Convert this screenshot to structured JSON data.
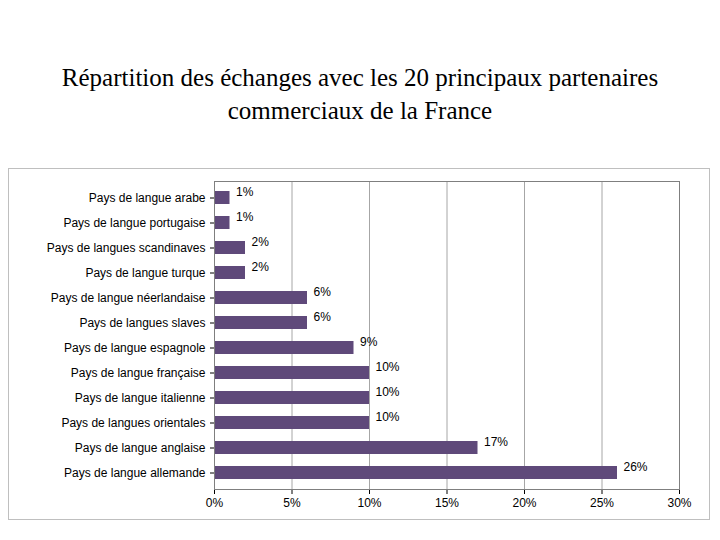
{
  "chart_data": {
    "type": "bar",
    "orientation": "horizontal",
    "title": "Répartition des échanges avec les 20 principaux partenaires commerciaux de la France",
    "categories": [
      "Pays de langue arabe",
      "Pays de langue portugaise",
      "Pays de langues scandinaves",
      "Pays de langue turque",
      "Pays de langue néerlandaise",
      "Pays de langues slaves",
      "Pays de langue espagnole",
      "Pays de langue française",
      "Pays de langue italienne",
      "Pays de langues orientales",
      "Pays de langue anglaise",
      "Pays de langue allemande"
    ],
    "values": [
      1,
      1,
      2,
      2,
      6,
      6,
      9,
      10,
      10,
      10,
      17,
      26
    ],
    "value_labels": [
      "1%",
      "1%",
      "2%",
      "2%",
      "6%",
      "6%",
      "9%",
      "10%",
      "10%",
      "10%",
      "17%",
      "26%"
    ],
    "data_labels": true,
    "color": "#5f497a",
    "xlim": [
      0,
      30
    ],
    "xticks": [
      {
        "value": 0,
        "label": "0%"
      },
      {
        "value": 5,
        "label": "5%"
      },
      {
        "value": 10,
        "label": "10%"
      },
      {
        "value": 15,
        "label": "15%"
      },
      {
        "value": 20,
        "label": "20%"
      },
      {
        "value": 25,
        "label": "25%"
      },
      {
        "value": 30,
        "label": "30%"
      }
    ],
    "grid": true
  }
}
